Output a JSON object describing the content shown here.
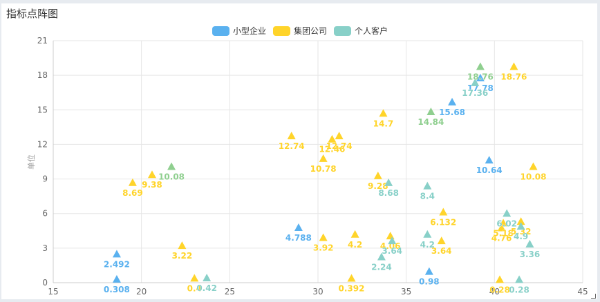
{
  "title": "指标点阵图",
  "legend": [
    {
      "name": "小型企业",
      "color": "#5ab1ef"
    },
    {
      "name": "集团公司",
      "color": "#ffd42a"
    },
    {
      "name": "个人客户",
      "color": "#88d0c8"
    }
  ],
  "colors": {
    "series_overlap_green": "#8fcf8f"
  },
  "chart_data": {
    "type": "scatter",
    "marker": "triangle",
    "ylabel": "单位",
    "xlim": [
      15,
      45
    ],
    "ylim": [
      0,
      21
    ],
    "xticks": [
      15,
      20,
      25,
      30,
      35,
      40,
      45
    ],
    "yticks": [
      0,
      3,
      6,
      9,
      12,
      15,
      18,
      21
    ],
    "grid": true,
    "legend_position": "top",
    "series": [
      {
        "name": "小型企业",
        "color": "#5ab1ef",
        "points": [
          {
            "x": 18.6,
            "y": 0.308,
            "label": "0.308"
          },
          {
            "x": 18.6,
            "y": 2.492,
            "label": "2.492"
          },
          {
            "x": 28.9,
            "y": 4.788,
            "label": "4.788"
          },
          {
            "x": 36.3,
            "y": 0.98,
            "label": "0.98"
          },
          {
            "x": 37.6,
            "y": 15.68,
            "label": "15.68"
          },
          {
            "x": 39.2,
            "y": 17.78,
            "label": "17.78"
          },
          {
            "x": 39.7,
            "y": 10.64,
            "label": "10.64"
          }
        ]
      },
      {
        "name": "集团公司",
        "color": "#ffd42a",
        "points": [
          {
            "x": 19.5,
            "y": 8.69,
            "label": "8.69"
          },
          {
            "x": 20.6,
            "y": 9.38,
            "label": "9.38"
          },
          {
            "x": 22.3,
            "y": 3.22,
            "label": "3.22"
          },
          {
            "x": 23.0,
            "y": 0.4,
            "label": "0.4"
          },
          {
            "x": 28.5,
            "y": 12.74,
            "label": "12.74"
          },
          {
            "x": 30.3,
            "y": 10.78,
            "label": "10.78"
          },
          {
            "x": 30.3,
            "y": 3.92,
            "label": "3.92"
          },
          {
            "x": 30.8,
            "y": 12.46,
            "label": "12.46"
          },
          {
            "x": 31.2,
            "y": 12.74,
            "label": "12.74"
          },
          {
            "x": 31.9,
            "y": 0.392,
            "label": "0.392"
          },
          {
            "x": 32.1,
            "y": 4.2,
            "label": "4.2"
          },
          {
            "x": 33.4,
            "y": 9.28,
            "label": "9.28"
          },
          {
            "x": 33.7,
            "y": 14.7,
            "label": "14.7"
          },
          {
            "x": 34.1,
            "y": 4.06,
            "label": "4.06"
          },
          {
            "x": 37.0,
            "y": 3.64,
            "label": "3.64"
          },
          {
            "x": 37.1,
            "y": 6.132,
            "label": "6.132"
          },
          {
            "x": 40.3,
            "y": 0.28,
            "label": "0.28"
          },
          {
            "x": 40.4,
            "y": 4.76,
            "label": "4.76"
          },
          {
            "x": 40.5,
            "y": 5.18,
            "label": "5.18"
          },
          {
            "x": 41.1,
            "y": 18.76,
            "label": "18.76"
          },
          {
            "x": 41.5,
            "y": 5.32,
            "label": "5.32"
          },
          {
            "x": 42.2,
            "y": 10.08,
            "label": "10.08"
          }
        ]
      },
      {
        "name": "个人客户",
        "color": "#88d0c8",
        "points": [
          {
            "x": 23.7,
            "y": 0.42,
            "label": "0.42"
          },
          {
            "x": 33.6,
            "y": 2.24,
            "label": "2.24"
          },
          {
            "x": 34.0,
            "y": 8.68,
            "label": "8.68"
          },
          {
            "x": 34.2,
            "y": 3.64,
            "label": "3.64"
          },
          {
            "x": 36.2,
            "y": 4.2,
            "label": "4.2"
          },
          {
            "x": 36.2,
            "y": 8.4,
            "label": "8.4"
          },
          {
            "x": 38.9,
            "y": 17.36,
            "label": "17.36"
          },
          {
            "x": 40.7,
            "y": 6.02,
            "label": "6.02"
          },
          {
            "x": 41.4,
            "y": 0.28,
            "label": "0.28"
          },
          {
            "x": 41.5,
            "y": 4.9,
            "label": "4.9"
          },
          {
            "x": 42.0,
            "y": 3.36,
            "label": "3.36"
          },
          {
            "x": 21.7,
            "y": 10.08,
            "label": "10.08",
            "color": "#8fcf8f"
          },
          {
            "x": 36.4,
            "y": 14.84,
            "label": "14.84",
            "color": "#8fcf8f"
          },
          {
            "x": 39.2,
            "y": 18.76,
            "label": "18.76",
            "color": "#8fcf8f"
          }
        ]
      }
    ]
  }
}
